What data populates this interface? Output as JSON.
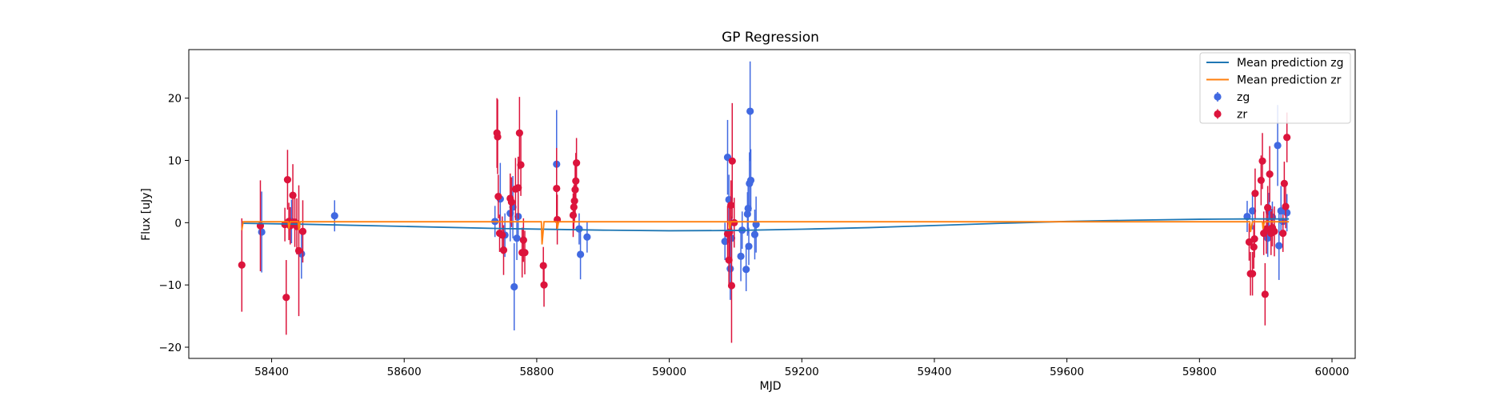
{
  "chart_data": {
    "type": "scatter",
    "title": "GP Regression",
    "xlabel": "MJD",
    "ylabel": "Flux [uJy]",
    "xlim": [
      58275,
      60035
    ],
    "ylim": [
      -21.8,
      27.8
    ],
    "xticks": [
      58400,
      58600,
      58800,
      59000,
      59200,
      59400,
      59600,
      59800,
      60000
    ],
    "yticks": [
      -20,
      -10,
      0,
      10,
      20
    ],
    "grid": false,
    "legend_position": "top-right",
    "series": [
      {
        "name": "Mean prediction zg",
        "kind": "line",
        "color": "#1f77b4",
        "points": [
          [
            58355,
            -0.1
          ],
          [
            58450,
            -0.25
          ],
          [
            58600,
            -0.6
          ],
          [
            58750,
            -0.95
          ],
          [
            58900,
            -1.2
          ],
          [
            59000,
            -1.3
          ],
          [
            59100,
            -1.25
          ],
          [
            59200,
            -1.05
          ],
          [
            59300,
            -0.8
          ],
          [
            59400,
            -0.45
          ],
          [
            59500,
            -0.1
          ],
          [
            59600,
            0.2
          ],
          [
            59700,
            0.4
          ],
          [
            59800,
            0.55
          ],
          [
            59870,
            0.6
          ],
          [
            59935,
            0.6
          ]
        ]
      },
      {
        "name": "Mean prediction zr",
        "kind": "line",
        "color": "#ff7f0e",
        "points": [
          [
            58355,
            -1.2
          ],
          [
            58357,
            0.15
          ],
          [
            58425,
            0.15
          ],
          [
            58426,
            -1.0
          ],
          [
            58428,
            0.15
          ],
          [
            58440,
            0.15
          ],
          [
            58441,
            -1.2
          ],
          [
            58443,
            0.15
          ],
          [
            58807,
            0.15
          ],
          [
            58808,
            -3.5
          ],
          [
            58811,
            0.15
          ],
          [
            58830,
            0.15
          ],
          [
            58831,
            -1.0
          ],
          [
            58833,
            0.15
          ],
          [
            59090,
            0.15
          ],
          [
            59091,
            -1.0
          ],
          [
            59093,
            0.15
          ],
          [
            59876,
            0.15
          ],
          [
            59877,
            -1.5
          ],
          [
            59880,
            0.15
          ],
          [
            59895,
            0.15
          ],
          [
            59896,
            -1.0
          ],
          [
            59898,
            0.15
          ],
          [
            59935,
            0.15
          ]
        ]
      },
      {
        "name": "zg",
        "kind": "errorbar",
        "color": "#4169e1",
        "points": [
          {
            "x": 58385,
            "y": -1.5,
            "err": 6.5
          },
          {
            "x": 58430,
            "y": 0.2,
            "err": 3.5
          },
          {
            "x": 58445,
            "y": -5.0,
            "err": 4.0
          },
          {
            "x": 58495,
            "y": 1.1,
            "err": 2.5
          },
          {
            "x": 58737,
            "y": 0.2,
            "err": 2.5
          },
          {
            "x": 58745,
            "y": 3.8,
            "err": 5.8
          },
          {
            "x": 58752,
            "y": -2.0,
            "err": 3.5
          },
          {
            "x": 58760,
            "y": 1.5,
            "err": 4.5
          },
          {
            "x": 58764,
            "y": 2.5,
            "err": 5.0
          },
          {
            "x": 58766,
            "y": -10.3,
            "err": 7.0
          },
          {
            "x": 58770,
            "y": -2.5,
            "err": 3.5
          },
          {
            "x": 58772,
            "y": 1.0,
            "err": 4.0
          },
          {
            "x": 58830,
            "y": 9.4,
            "err": 8.7
          },
          {
            "x": 58864,
            "y": -1.0,
            "err": 2.5
          },
          {
            "x": 58866,
            "y": -5.1,
            "err": 4.0
          },
          {
            "x": 58876,
            "y": -2.3,
            "err": 2.5
          },
          {
            "x": 59084,
            "y": -3.0,
            "err": 3.0
          },
          {
            "x": 59088,
            "y": 10.5,
            "err": 6.0
          },
          {
            "x": 59090,
            "y": 3.7,
            "err": 4.0
          },
          {
            "x": 59092,
            "y": -7.4,
            "err": 5.0
          },
          {
            "x": 59094,
            "y": -2.5,
            "err": 3.5
          },
          {
            "x": 59108,
            "y": -5.4,
            "err": 4.0
          },
          {
            "x": 59110,
            "y": -1.2,
            "err": 3.0
          },
          {
            "x": 59116,
            "y": -7.5,
            "err": 3.5
          },
          {
            "x": 59118,
            "y": 1.4,
            "err": 3.5
          },
          {
            "x": 59119,
            "y": 2.3,
            "err": 4.0
          },
          {
            "x": 59120,
            "y": -3.8,
            "err": 3.0
          },
          {
            "x": 59121,
            "y": 6.3,
            "err": 5.0
          },
          {
            "x": 59122,
            "y": 17.9,
            "err": 8.0
          },
          {
            "x": 59123,
            "y": 6.8,
            "err": 5.0
          },
          {
            "x": 59129,
            "y": -1.9,
            "err": 4.0
          },
          {
            "x": 59131,
            "y": -0.3,
            "err": 4.5
          },
          {
            "x": 59872,
            "y": 1.0,
            "err": 2.5
          },
          {
            "x": 59880,
            "y": 1.9,
            "err": 3.0
          },
          {
            "x": 59903,
            "y": -2.5,
            "err": 3.0
          },
          {
            "x": 59905,
            "y": 1.8,
            "err": 3.0
          },
          {
            "x": 59910,
            "y": 0.9,
            "err": 2.5
          },
          {
            "x": 59918,
            "y": 12.4,
            "err": 6.5
          },
          {
            "x": 59920,
            "y": -3.7,
            "err": 5.5
          },
          {
            "x": 59923,
            "y": 1.9,
            "err": 4.0
          },
          {
            "x": 59926,
            "y": 0.2,
            "err": 2.5
          },
          {
            "x": 59932,
            "y": 1.6,
            "err": 3.0
          }
        ]
      },
      {
        "name": "zr",
        "kind": "errorbar",
        "color": "#dc143c",
        "points": [
          {
            "x": 58355,
            "y": -6.8,
            "err": 7.5
          },
          {
            "x": 58383,
            "y": -0.5,
            "err": 7.3
          },
          {
            "x": 58420,
            "y": -0.3,
            "err": 2.7
          },
          {
            "x": 58422,
            "y": -12.0,
            "err": 6.0
          },
          {
            "x": 58424,
            "y": 6.9,
            "err": 4.8
          },
          {
            "x": 58426,
            "y": 0.2,
            "err": 3.0
          },
          {
            "x": 58428,
            "y": -0.5,
            "err": 3.0
          },
          {
            "x": 58432,
            "y": 4.4,
            "err": 5.0
          },
          {
            "x": 58435,
            "y": 0.1,
            "err": 4.0
          },
          {
            "x": 58438,
            "y": -0.6,
            "err": 4.5
          },
          {
            "x": 58441,
            "y": -4.5,
            "err": 10.5
          },
          {
            "x": 58447,
            "y": -1.4,
            "err": 5.0
          },
          {
            "x": 58740,
            "y": 14.4,
            "err": 5.6
          },
          {
            "x": 58741,
            "y": 13.8,
            "err": 6.0
          },
          {
            "x": 58742,
            "y": 4.2,
            "err": 3.5
          },
          {
            "x": 58744,
            "y": -1.7,
            "err": 3.0
          },
          {
            "x": 58748,
            "y": -2.0,
            "err": 3.0
          },
          {
            "x": 58750,
            "y": -4.4,
            "err": 4.0
          },
          {
            "x": 58760,
            "y": 3.9,
            "err": 4.0
          },
          {
            "x": 58762,
            "y": 3.3,
            "err": 4.0
          },
          {
            "x": 58768,
            "y": 5.4,
            "err": 5.0
          },
          {
            "x": 58772,
            "y": 5.6,
            "err": 5.0
          },
          {
            "x": 58774,
            "y": 14.4,
            "err": 5.8
          },
          {
            "x": 58776,
            "y": 9.3,
            "err": 5.0
          },
          {
            "x": 58778,
            "y": -4.8,
            "err": 4.0
          },
          {
            "x": 58780,
            "y": -2.8,
            "err": 3.5
          },
          {
            "x": 58782,
            "y": -4.8,
            "err": 3.5
          },
          {
            "x": 58810,
            "y": -6.9,
            "err": 3.0
          },
          {
            "x": 58811,
            "y": -10.0,
            "err": 3.5
          },
          {
            "x": 58830,
            "y": 5.5,
            "err": 6.5
          },
          {
            "x": 58831,
            "y": 0.5,
            "err": 4.0
          },
          {
            "x": 58855,
            "y": 1.2,
            "err": 3.5
          },
          {
            "x": 58856,
            "y": 2.5,
            "err": 3.5
          },
          {
            "x": 58857,
            "y": 3.5,
            "err": 3.5
          },
          {
            "x": 58858,
            "y": 5.3,
            "err": 4.5
          },
          {
            "x": 58859,
            "y": 6.7,
            "err": 4.5
          },
          {
            "x": 58860,
            "y": 9.6,
            "err": 4.0
          },
          {
            "x": 59088,
            "y": -1.8,
            "err": 4.5
          },
          {
            "x": 59090,
            "y": -6.0,
            "err": 4.0
          },
          {
            "x": 59091,
            "y": -1.5,
            "err": 4.0
          },
          {
            "x": 59093,
            "y": 2.8,
            "err": 4.0
          },
          {
            "x": 59094,
            "y": -10.1,
            "err": 9.2
          },
          {
            "x": 59095,
            "y": 9.9,
            "err": 9.3
          },
          {
            "x": 59098,
            "y": 0.0,
            "err": 4.0
          },
          {
            "x": 59875,
            "y": -3.1,
            "err": 3.0
          },
          {
            "x": 59877,
            "y": -8.2,
            "err": 3.5
          },
          {
            "x": 59880,
            "y": -8.2,
            "err": 3.5
          },
          {
            "x": 59882,
            "y": -3.9,
            "err": 3.5
          },
          {
            "x": 59883,
            "y": -2.6,
            "err": 3.0
          },
          {
            "x": 59884,
            "y": 4.7,
            "err": 4.0
          },
          {
            "x": 59893,
            "y": 6.8,
            "err": 4.0
          },
          {
            "x": 59895,
            "y": 9.9,
            "err": 4.5
          },
          {
            "x": 59897,
            "y": -1.7,
            "err": 3.5
          },
          {
            "x": 59899,
            "y": -11.5,
            "err": 5.0
          },
          {
            "x": 59901,
            "y": -1.0,
            "err": 4.0
          },
          {
            "x": 59903,
            "y": 2.4,
            "err": 3.5
          },
          {
            "x": 59906,
            "y": 7.8,
            "err": 4.5
          },
          {
            "x": 59908,
            "y": -1.7,
            "err": 3.5
          },
          {
            "x": 59910,
            "y": -0.8,
            "err": 3.0
          },
          {
            "x": 59913,
            "y": -1.4,
            "err": 4.0
          },
          {
            "x": 59926,
            "y": -1.7,
            "err": 3.0
          },
          {
            "x": 59928,
            "y": 6.3,
            "err": 3.5
          },
          {
            "x": 59930,
            "y": 2.6,
            "err": 3.5
          },
          {
            "x": 59932,
            "y": 13.7,
            "err": 4.0
          }
        ]
      }
    ]
  }
}
